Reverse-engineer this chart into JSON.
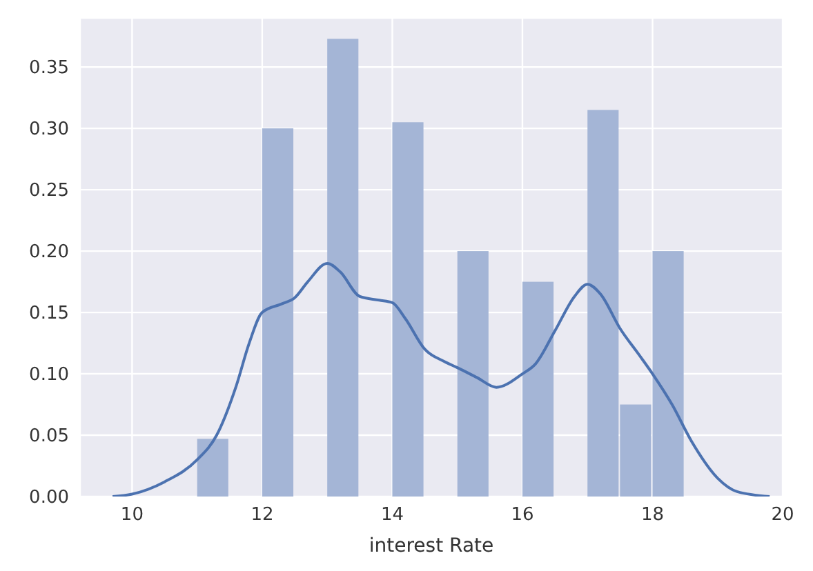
{
  "chart_data": {
    "type": "histogram",
    "xlabel": "interest Rate",
    "series": [
      {
        "color": "#a4b5d6",
        "bins": [
          11,
          11.5,
          12,
          12.5,
          13,
          13.5,
          14,
          14.5,
          15,
          15.5,
          16,
          16.5,
          17,
          17.5,
          18,
          18.5
        ],
        "values": [
          0.047,
          0,
          0.3,
          0,
          0.373,
          0,
          0.305,
          0,
          0.2,
          0,
          0.175,
          0,
          0.315,
          0.075,
          0.2
        ]
      },
      {
        "type": "line",
        "color": "#4c72b0",
        "x": [
          9.7,
          10,
          10.5,
          11,
          11.3,
          11.6,
          11.8,
          12,
          12.3,
          12.5,
          12.7,
          13,
          13.2,
          13.5,
          13.8,
          14,
          14.2,
          14.5,
          14.8,
          15,
          15.3,
          15.6,
          16,
          16.2,
          16.5,
          16.8,
          17,
          17.2,
          17.5,
          17.8,
          18,
          18.3,
          18.6,
          19,
          19.3,
          19.8
        ],
        "values": [
          0,
          0.002,
          0.012,
          0.03,
          0.05,
          0.09,
          0.125,
          0.15,
          0.157,
          0.162,
          0.175,
          0.19,
          0.183,
          0.163,
          0.16,
          0.158,
          0.145,
          0.12,
          0.11,
          0.105,
          0.097,
          0.089,
          0.1,
          0.108,
          0.135,
          0.163,
          0.173,
          0.165,
          0.137,
          0.115,
          0.1,
          0.075,
          0.045,
          0.015,
          0.004,
          0
        ]
      }
    ],
    "xlim": [
      9.2,
      20
    ],
    "xticks": [
      10,
      12,
      14,
      16,
      18,
      20
    ],
    "ylim": [
      0,
      0.39
    ],
    "yticks": [
      {
        "value": 0,
        "label": "0.00"
      },
      {
        "value": 0.05,
        "label": "0.05"
      },
      {
        "value": 0.1,
        "label": "0.10"
      },
      {
        "value": 0.15,
        "label": "0.15"
      },
      {
        "value": 0.2,
        "label": "0.20"
      },
      {
        "value": 0.25,
        "label": "0.25"
      },
      {
        "value": 0.3,
        "label": "0.30"
      },
      {
        "value": 0.35,
        "label": "0.35"
      }
    ],
    "grid": true
  }
}
